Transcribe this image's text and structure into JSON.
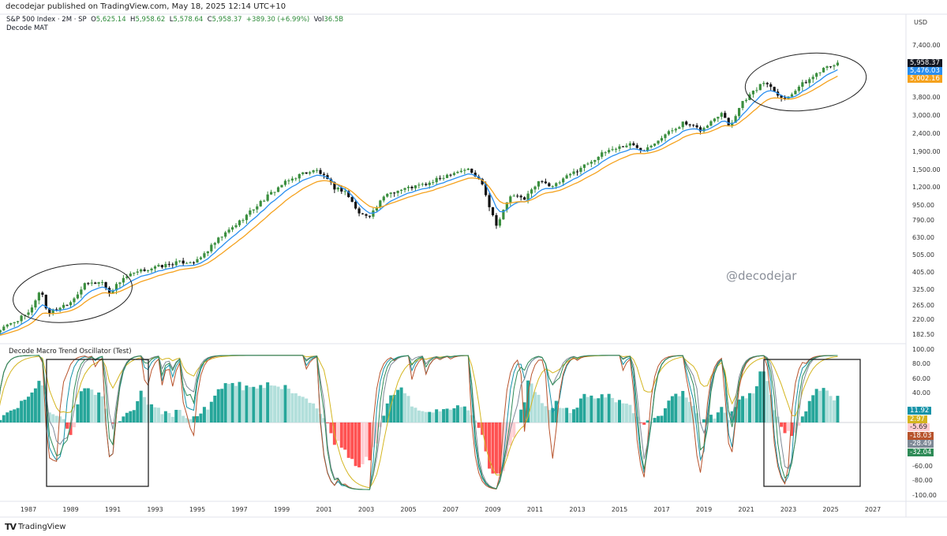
{
  "header": {
    "published": "decodejar published on TradingView.com, May 18, 2025 12:14 UTC+10"
  },
  "legend": {
    "symbol": "S&P 500 Index · 2M · SP",
    "o_label": "O",
    "open": "5,625.14",
    "h_label": "H",
    "high": "5,958.62",
    "l_label": "L",
    "low": "5,578.64",
    "c_label": "C",
    "close": "5,958.37",
    "change": "+389.30 (+6.99%)",
    "vol_label": "Vol",
    "vol": "36.5B",
    "indicator": "Decode MAT"
  },
  "currency": "USD",
  "watermark": "@decodejar",
  "oscillator_title": "Decode Macro Trend Oscillator (Test)",
  "brand": "TradingView",
  "price_tags": [
    {
      "value": "5,958.37",
      "color": "#131722"
    },
    {
      "value": "5,476.03",
      "color": "#2a8ff0"
    },
    {
      "value": "5,002.16",
      "color": "#f5a21e"
    }
  ],
  "osc_tags": [
    {
      "value": "11.92",
      "color": "#1593a8"
    },
    {
      "value": "2.97",
      "color": "#d4b51f"
    },
    {
      "value": "-5.69",
      "color": "#ffcdd2",
      "text": "#333"
    },
    {
      "value": "-18.03",
      "color": "#b8532c"
    },
    {
      "value": "-28.49",
      "color": "#7e8996"
    },
    {
      "value": "-32.04",
      "color": "#2e8b57"
    }
  ],
  "chart_data": {
    "type": "candlestick",
    "title": "S&P 500 Index · 2M",
    "price_axis": {
      "scale": "log",
      "ticks": [
        7400,
        3800,
        3000,
        2400,
        1900,
        1500,
        1200,
        950,
        790,
        630,
        505,
        405,
        325,
        265,
        220,
        182.5
      ],
      "labels": [
        "7,400.00",
        "3,800.00",
        "3,000.00",
        "2,400.00",
        "1,900.00",
        "1,500.00",
        "1,200.00",
        "950.00",
        "790.00",
        "630.00",
        "505.00",
        "405.00",
        "325.00",
        "265.00",
        "220.00",
        "182.50"
      ]
    },
    "osc_axis": {
      "ticks": [
        100,
        80,
        60,
        40,
        -60,
        -80,
        -100
      ],
      "labels": [
        "100.00",
        "80.00",
        "60.00",
        "40.00",
        "-60.00",
        "-80.00",
        "-100.00"
      ]
    },
    "time_axis": [
      "1987",
      "1989",
      "1991",
      "1993",
      "1995",
      "1997",
      "1999",
      "2001",
      "2003",
      "2005",
      "2007",
      "2009",
      "2011",
      "2013",
      "2015",
      "2017",
      "2019",
      "2021",
      "2023",
      "2025",
      "2027"
    ],
    "approx_close_anchors": [
      [
        1985.5,
        190
      ],
      [
        1987.0,
        240
      ],
      [
        1987.6,
        330
      ],
      [
        1987.9,
        240
      ],
      [
        1989.0,
        280
      ],
      [
        1989.7,
        350
      ],
      [
        1990.5,
        360
      ],
      [
        1990.8,
        310
      ],
      [
        1991.5,
        380
      ],
      [
        1992.5,
        420
      ],
      [
        1994.0,
        460
      ],
      [
        1995.0,
        470
      ],
      [
        1996.0,
        620
      ],
      [
        1997.0,
        780
      ],
      [
        1998.0,
        1000
      ],
      [
        1999.0,
        1250
      ],
      [
        2000.0,
        1450
      ],
      [
        2000.7,
        1500
      ],
      [
        2001.5,
        1200
      ],
      [
        2002.0,
        1150
      ],
      [
        2002.7,
        850
      ],
      [
        2003.2,
        850
      ],
      [
        2004.0,
        1120
      ],
      [
        2005.0,
        1200
      ],
      [
        2006.0,
        1270
      ],
      [
        2007.0,
        1450
      ],
      [
        2007.8,
        1530
      ],
      [
        2008.5,
        1280
      ],
      [
        2008.9,
        900
      ],
      [
        2009.2,
        740
      ],
      [
        2009.8,
        1080
      ],
      [
        2010.5,
        1050
      ],
      [
        2011.3,
        1340
      ],
      [
        2011.8,
        1200
      ],
      [
        2012.5,
        1380
      ],
      [
        2013.5,
        1650
      ],
      [
        2014.5,
        1950
      ],
      [
        2015.5,
        2100
      ],
      [
        2016.1,
        1950
      ],
      [
        2017.0,
        2300
      ],
      [
        2018.0,
        2750
      ],
      [
        2018.9,
        2500
      ],
      [
        2019.9,
        3230
      ],
      [
        2020.2,
        2600
      ],
      [
        2020.8,
        3600
      ],
      [
        2021.9,
        4700
      ],
      [
        2022.8,
        3700
      ],
      [
        2023.5,
        4400
      ],
      [
        2024.0,
        4800
      ],
      [
        2024.9,
        5900
      ],
      [
        2025.2,
        5600
      ],
      [
        2025.4,
        5958.37
      ]
    ],
    "series": [
      {
        "name": "Decode MAT fast",
        "color": "#2a8ff0",
        "last": 5476.03
      },
      {
        "name": "Decode MAT slow",
        "color": "#f5a21e",
        "last": 5002.16
      }
    ]
  }
}
